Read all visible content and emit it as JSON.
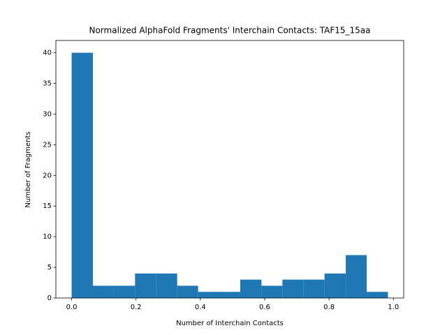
{
  "chart_data": {
    "type": "histogram",
    "title": "Normalized AlphaFold Fragments' Interchain Contacts: TAF15_15aa",
    "x_label": "Number of Interchain Contacts",
    "y_label": "Number of Fragments",
    "bins": [
      0,
      0.066,
      0.131,
      0.197,
      0.262,
      0.328,
      0.393,
      0.459,
      0.524,
      0.59,
      0.655,
      0.721,
      0.786,
      0.852,
      0.917,
      0.983
    ],
    "values": [
      40,
      2,
      2,
      4,
      4,
      2,
      1,
      1,
      3,
      2,
      3,
      3,
      4,
      7,
      1
    ],
    "color": "#1f77b4",
    "xlim": [
      -0.049,
      1.032
    ],
    "xticks": [
      {
        "value": 0,
        "label": "0.0"
      },
      {
        "value": 0.2,
        "label": "0.2"
      },
      {
        "value": 0.4,
        "label": "0.4"
      },
      {
        "value": 0.6,
        "label": "0.6"
      },
      {
        "value": 0.8,
        "label": "0.8"
      },
      {
        "value": 1,
        "label": "1.0"
      }
    ],
    "ylim": [
      0,
      42
    ],
    "yticks": [
      0,
      5,
      10,
      15,
      20,
      25,
      30,
      35,
      40
    ]
  }
}
